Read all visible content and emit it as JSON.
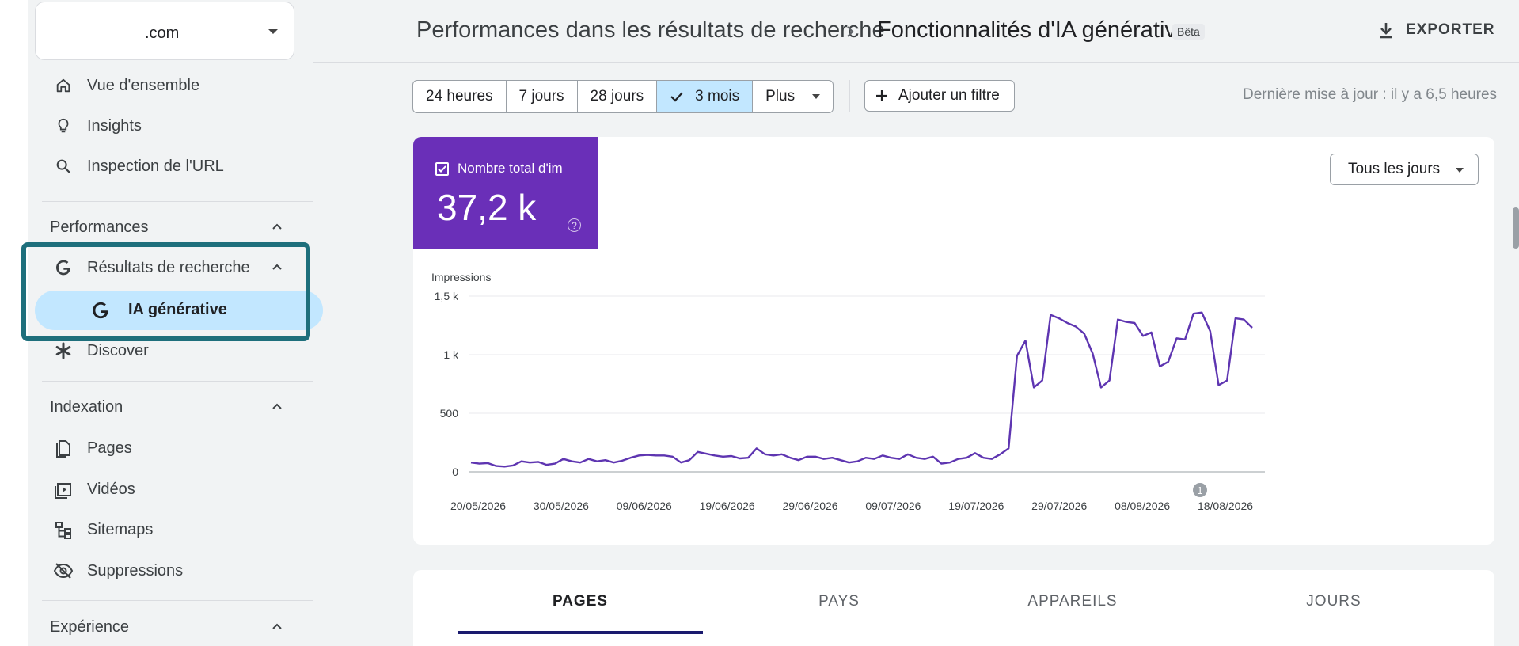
{
  "property": {
    "name": ".com"
  },
  "sidebar": {
    "items": [
      {
        "label": "Vue d'ensemble",
        "icon": "home-icon"
      },
      {
        "label": "Insights",
        "icon": "lightbulb-icon"
      },
      {
        "label": "Inspection de l'URL",
        "icon": "search-icon"
      }
    ],
    "sections": {
      "performances": "Performances",
      "search_results": "Résultats de recherche",
      "ia": "IA générative",
      "discover": "Discover",
      "indexation": "Indexation",
      "experience": "Expérience"
    },
    "indexation_items": [
      {
        "label": "Pages",
        "icon": "pages-icon"
      },
      {
        "label": "Vidéos",
        "icon": "video-icon"
      },
      {
        "label": "Sitemaps",
        "icon": "sitemap-icon"
      },
      {
        "label": "Suppressions",
        "icon": "eye-off-icon"
      }
    ]
  },
  "header": {
    "breadcrumb_parent": "Performances dans les résultats de recherche",
    "breadcrumb_current": "Fonctionnalités d'IA générative",
    "beta": "Bêta",
    "export": "EXPORTER"
  },
  "filters": {
    "ranges": [
      "24 heures",
      "7 jours",
      "28 jours",
      "3 mois",
      "Plus"
    ],
    "selected": "3 mois",
    "add_filter": "Ajouter un filtre",
    "last_update": "Dernière mise à jour : il y a 6,5 heures"
  },
  "metric": {
    "label": "Nombre total d'im",
    "value": "37,2 k",
    "help": "?",
    "color": "#6a2fb8"
  },
  "range_select": {
    "label": "Tous les jours"
  },
  "chart_data": {
    "type": "line",
    "ylabel": "Impressions",
    "ylim": [
      0,
      1500
    ],
    "y_ticks": [
      0,
      500,
      1000,
      1500
    ],
    "y_tick_labels": [
      "0",
      "500",
      "1 k",
      "1,5 k"
    ],
    "x_tick_labels": [
      "20/05/2026",
      "30/05/2026",
      "09/06/2026",
      "19/06/2026",
      "29/06/2026",
      "09/07/2026",
      "19/07/2026",
      "29/07/2026",
      "08/08/2026",
      "18/08/2026"
    ],
    "annotation": "1",
    "series": [
      {
        "color": "#5e35b1",
        "values": [
          80,
          70,
          75,
          50,
          45,
          55,
          90,
          80,
          85,
          60,
          70,
          110,
          90,
          80,
          110,
          90,
          100,
          80,
          95,
          120,
          140,
          145,
          140,
          140,
          130,
          80,
          100,
          170,
          155,
          140,
          130,
          135,
          115,
          120,
          200,
          150,
          140,
          150,
          120,
          100,
          130,
          130,
          110,
          120,
          100,
          80,
          90,
          120,
          110,
          140,
          120,
          110,
          150,
          120,
          110,
          130,
          70,
          80,
          110,
          120,
          160,
          120,
          110,
          150,
          200,
          990,
          1120,
          720,
          780,
          1340,
          1310,
          1270,
          1240,
          1180,
          1010,
          720,
          780,
          1300,
          1280,
          1270,
          1160,
          1190,
          900,
          940,
          1140,
          1130,
          1350,
          1360,
          1200,
          740,
          780,
          1310,
          1300,
          1230
        ]
      }
    ]
  },
  "tabs": [
    "PAGES",
    "PAYS",
    "APPAREILS",
    "JOURS"
  ]
}
